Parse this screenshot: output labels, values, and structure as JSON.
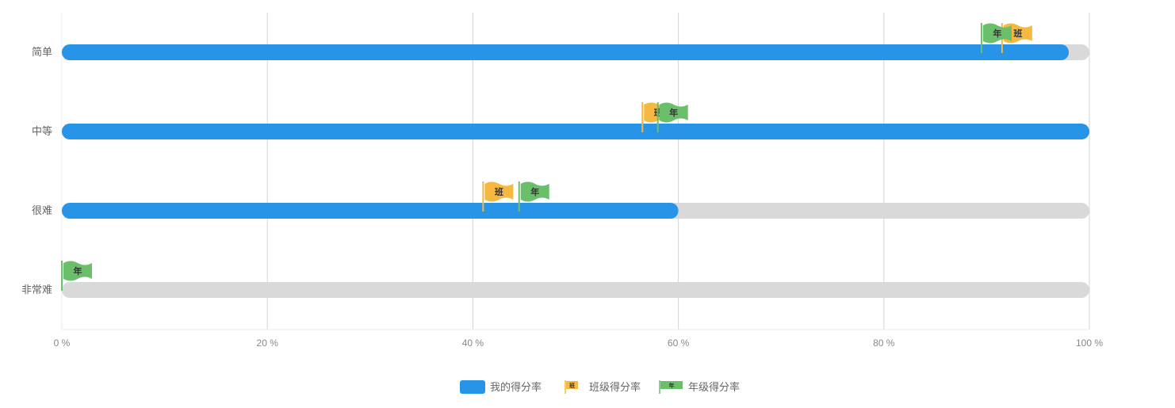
{
  "chart_data": {
    "type": "bar",
    "orientation": "horizontal",
    "categories": [
      "简单",
      "中等",
      "很难",
      "非常难"
    ],
    "xlim": [
      0,
      100
    ],
    "x_ticks": [
      "0 %",
      "20 %",
      "40 %",
      "60 %",
      "80 %",
      "100 %"
    ],
    "grid": true,
    "legend_position": "bottom",
    "series": [
      {
        "name": "我的得分率",
        "values": [
          98,
          100,
          60,
          0
        ],
        "color": "#2794e8",
        "track_color": "#d9d9d9",
        "marker": "bar"
      },
      {
        "name": "班级得分率",
        "values": [
          91.5,
          56.5,
          41,
          null
        ],
        "color": "#f5b942",
        "marker": "flag",
        "flag_text": "班"
      },
      {
        "name": "年级得分率",
        "values": [
          89.5,
          58,
          44.5,
          0
        ],
        "color": "#6bbf6b",
        "marker": "flag",
        "flag_text": "年"
      }
    ]
  }
}
